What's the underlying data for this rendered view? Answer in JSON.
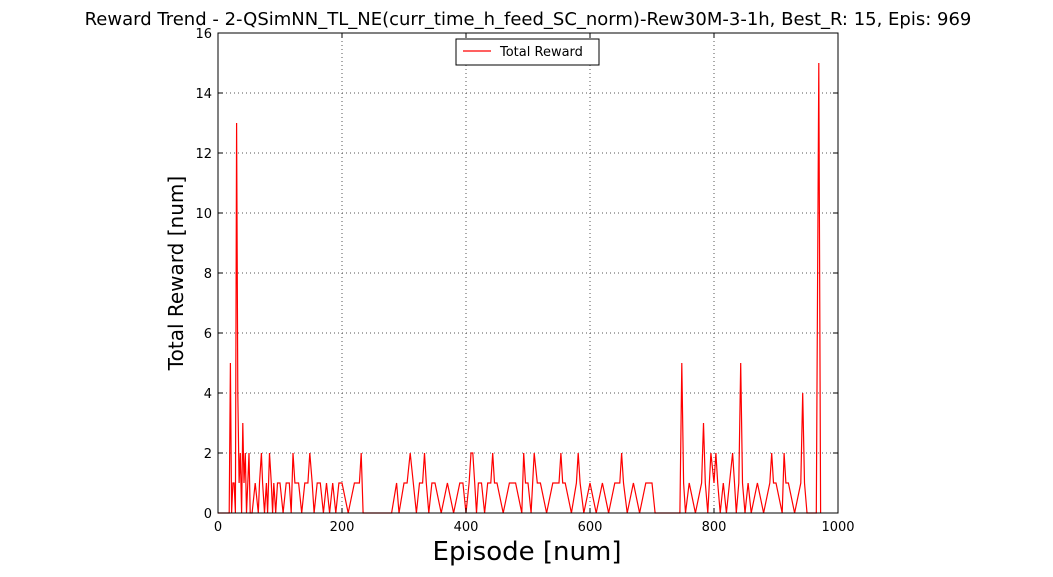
{
  "chart_data": {
    "type": "line",
    "title": "Reward Trend - 2-QSimNN_TL_NE(curr_time_h_feed_SC_norm)-Rew30M-3-1h, Best_R: 15, Epis: 969",
    "xlabel": "Episode [num]",
    "ylabel": "Total Reward [num]",
    "xlim": [
      0,
      1000
    ],
    "ylim": [
      0,
      16
    ],
    "xticks": [
      0,
      200,
      400,
      600,
      800,
      1000
    ],
    "yticks": [
      0,
      2,
      4,
      6,
      8,
      10,
      12,
      14,
      16
    ],
    "grid": true,
    "legend": {
      "position": "top-center"
    },
    "colors": {
      "series": "#ff0000",
      "grid": "#555555",
      "axes": "#000000"
    },
    "series": [
      {
        "name": "Total Reward",
        "x": [
          0,
          15,
          18,
          20,
          22,
          24,
          26,
          28,
          30,
          32,
          34,
          36,
          38,
          40,
          42,
          44,
          46,
          48,
          50,
          52,
          55,
          60,
          65,
          67,
          70,
          72,
          75,
          78,
          80,
          83,
          86,
          88,
          90,
          93,
          96,
          100,
          105,
          110,
          115,
          118,
          121,
          124,
          130,
          135,
          140,
          145,
          148,
          152,
          155,
          160,
          165,
          170,
          175,
          180,
          185,
          190,
          195,
          200,
          210,
          220,
          228,
          231,
          234,
          240,
          260,
          280,
          288,
          292,
          300,
          305,
          310,
          315,
          320,
          325,
          330,
          333,
          336,
          340,
          345,
          350,
          360,
          370,
          380,
          390,
          395,
          400,
          405,
          408,
          411,
          414,
          417,
          420,
          425,
          430,
          435,
          440,
          443,
          446,
          450,
          460,
          470,
          480,
          490,
          493,
          496,
          500,
          505,
          510,
          515,
          520,
          530,
          540,
          550,
          553,
          556,
          560,
          570,
          578,
          581,
          584,
          590,
          600,
          610,
          620,
          630,
          640,
          648,
          651,
          654,
          660,
          670,
          680,
          690,
          700,
          705,
          720,
          740,
          745,
          748,
          751,
          754,
          760,
          770,
          780,
          783,
          786,
          790,
          795,
          800,
          803,
          806,
          810,
          815,
          820,
          825,
          830,
          833,
          836,
          840,
          843,
          846,
          850,
          855,
          860,
          870,
          880,
          890,
          893,
          896,
          900,
          910,
          913,
          916,
          920,
          930,
          940,
          943,
          946,
          950,
          955,
          960,
          965,
          969,
          972
        ],
        "y": [
          0,
          0,
          0,
          5,
          0,
          1,
          1,
          0,
          13,
          4,
          1,
          2,
          0,
          3,
          1,
          2,
          0,
          1,
          2,
          0,
          0,
          1,
          0,
          1,
          2,
          1,
          0,
          1,
          0,
          2,
          1,
          0,
          1,
          0,
          1,
          1,
          0,
          1,
          1,
          0,
          2,
          1,
          1,
          0,
          1,
          1,
          2,
          1,
          0,
          1,
          1,
          0,
          1,
          0,
          1,
          0,
          1,
          1,
          0,
          1,
          1,
          2,
          0,
          0,
          0,
          0,
          1,
          0,
          1,
          1,
          2,
          1,
          0,
          1,
          1,
          2,
          1,
          0,
          1,
          1,
          0,
          1,
          0,
          1,
          1,
          0,
          1,
          2,
          2,
          1,
          0,
          1,
          1,
          0,
          1,
          1,
          2,
          1,
          1,
          0,
          1,
          1,
          0,
          2,
          1,
          1,
          0,
          2,
          1,
          1,
          0,
          1,
          1,
          2,
          1,
          1,
          0,
          1,
          2,
          1,
          0,
          1,
          0,
          1,
          0,
          1,
          1,
          2,
          1,
          0,
          1,
          0,
          1,
          1,
          0,
          0,
          0,
          0,
          5,
          1,
          0,
          1,
          0,
          1,
          3,
          1,
          0,
          2,
          1,
          2,
          1,
          0,
          1,
          0,
          1,
          2,
          1,
          0,
          1,
          5,
          1,
          0,
          1,
          0,
          1,
          0,
          1,
          2,
          1,
          1,
          0,
          2,
          1,
          1,
          0,
          1,
          4,
          1,
          0,
          0,
          0,
          0,
          15,
          0
        ]
      }
    ]
  }
}
